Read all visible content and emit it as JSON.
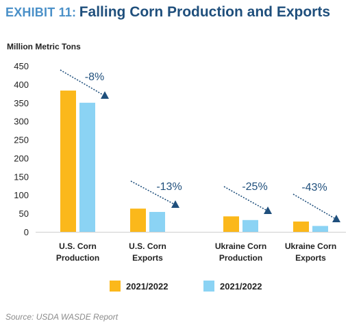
{
  "header": {
    "exhibit_label": "EXHIBIT 11:",
    "title": "Falling Corn Production and Exports"
  },
  "footer": {
    "source": "Source: USDA WASDE Report"
  },
  "colors": {
    "series1": "#fbb81b",
    "series2": "#8bd3f4",
    "annotation": "#1f4f7c",
    "axis_text": "#222222"
  },
  "chart_data": {
    "type": "bar",
    "ylabel": "Million Metric Tons",
    "xlabel": "",
    "ylim": [
      0,
      450
    ],
    "yticks": [
      0,
      50,
      100,
      150,
      200,
      250,
      300,
      350,
      400,
      450
    ],
    "grid": false,
    "legend_position": "bottom",
    "categories": [
      [
        "U.S. Corn",
        "Production"
      ],
      [
        "U.S. Corn",
        "Exports"
      ],
      [
        "Ukraine Corn",
        "Production"
      ],
      [
        "Ukraine Corn",
        "Exports"
      ]
    ],
    "series": [
      {
        "name": "2021/2022",
        "values": [
          383,
          63,
          42,
          28
        ]
      },
      {
        "name": "2021/2022",
        "values": [
          350,
          54,
          32,
          16
        ]
      }
    ],
    "annotations": [
      "-8%",
      "-13%",
      "-25%",
      "-43%"
    ]
  }
}
